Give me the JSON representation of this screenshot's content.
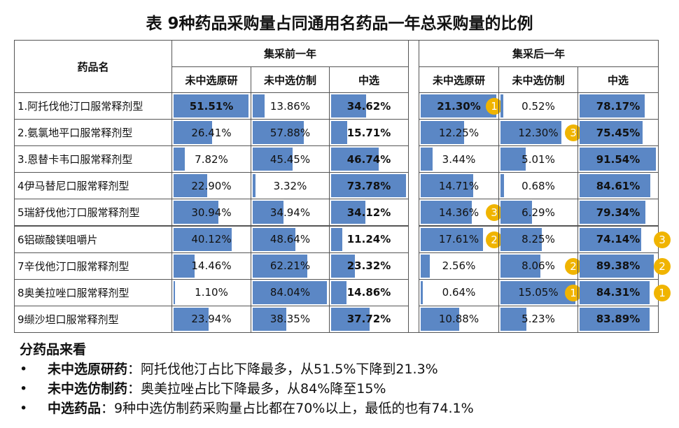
{
  "title": "表 9种药品采购量占同通用名药品一年总采购量的比例",
  "table": {
    "name_header": "药品名",
    "groups": [
      "集采前一年",
      "集采后一年"
    ],
    "subheaders": [
      "未中选原研",
      "未中选仿制",
      "中选",
      "未中选原研",
      "未中选仿制",
      "中选"
    ],
    "rows": [
      {
        "name": "1.阿托伐他汀口服常释剂型",
        "values": [
          51.51,
          13.86,
          34.62,
          21.3,
          0.52,
          78.17
        ],
        "value_labels": [
          "51.51%",
          "13.86%",
          "34.62%",
          "21.30%",
          "0.52%",
          "78.17%"
        ],
        "badges": [
          null,
          null,
          null,
          "1",
          null,
          null
        ]
      },
      {
        "name": "2.氨氯地平口服常释剂型",
        "values": [
          26.41,
          57.88,
          15.71,
          12.25,
          12.3,
          75.45
        ],
        "value_labels": [
          "26.41%",
          "57.88%",
          "15.71%",
          "12.25%",
          "12.30%",
          "75.45%"
        ],
        "badges": [
          null,
          null,
          null,
          null,
          "3",
          null
        ]
      },
      {
        "name": "3.恩替卡韦口服常释剂型",
        "values": [
          7.82,
          45.45,
          46.74,
          3.44,
          5.01,
          91.54
        ],
        "value_labels": [
          "7.82%",
          "45.45%",
          "46.74%",
          "3.44%",
          "5.01%",
          "91.54%"
        ],
        "badges": [
          null,
          null,
          null,
          null,
          null,
          null
        ]
      },
      {
        "name": "4伊马替尼口服常释剂型",
        "values": [
          22.9,
          3.32,
          73.78,
          14.71,
          0.68,
          84.61
        ],
        "value_labels": [
          "22.90%",
          "3.32%",
          "73.78%",
          "14.71%",
          "0.68%",
          "84.61%"
        ],
        "badges": [
          null,
          null,
          null,
          null,
          null,
          null
        ]
      },
      {
        "name": "5瑞舒伐他汀口服常释剂型",
        "values": [
          30.94,
          34.94,
          34.12,
          14.36,
          6.29,
          79.34
        ],
        "value_labels": [
          "30.94%",
          "34.94%",
          "34.12%",
          "14.36%",
          "6.29%",
          "79.34%"
        ],
        "badges": [
          null,
          null,
          null,
          "3",
          null,
          null
        ]
      },
      {
        "name": "6铝碳酸镁咀嚼片",
        "values": [
          40.12,
          48.64,
          11.24,
          17.61,
          8.25,
          74.14
        ],
        "value_labels": [
          "40.12%",
          "48.64%",
          "11.24%",
          "17.61%",
          "8.25%",
          "74.14%"
        ],
        "badges": [
          null,
          null,
          null,
          "2",
          null,
          "3"
        ]
      },
      {
        "name": "7辛伐他汀口服常释剂型",
        "values": [
          14.46,
          62.21,
          23.32,
          2.56,
          8.06,
          89.38
        ],
        "value_labels": [
          "14.46%",
          "62.21%",
          "23.32%",
          "2.56%",
          "8.06%",
          "89.38%"
        ],
        "badges": [
          null,
          null,
          null,
          null,
          "2",
          "2"
        ]
      },
      {
        "name": "8奥美拉唑口服常释剂型",
        "values": [
          1.1,
          84.04,
          14.86,
          0.64,
          15.05,
          84.31
        ],
        "value_labels": [
          "1.10%",
          "84.04%",
          "14.86%",
          "0.64%",
          "15.05%",
          "84.31%"
        ],
        "badges": [
          null,
          null,
          null,
          null,
          "1",
          "1"
        ]
      },
      {
        "name": "9缬沙坦口服常释剂型",
        "values": [
          23.94,
          38.35,
          37.72,
          10.88,
          5.23,
          83.89
        ],
        "value_labels": [
          "23.94%",
          "38.35%",
          "37.72%",
          "10.88%",
          "5.23%",
          "83.89%"
        ],
        "badges": [
          null,
          null,
          null,
          null,
          null,
          null
        ]
      }
    ]
  },
  "notes": {
    "heading": "分药品来看",
    "items": [
      {
        "lead": "未中选原研药",
        "text": "：阿托伐他汀占比下降最多，从51.5%下降到21.3%"
      },
      {
        "lead": "未中选仿制药",
        "text": "：奥美拉唑占比下降最多，从84%降至15%"
      },
      {
        "lead": "中选药品",
        "text": "：9种中选仿制药采购量占比都在70%以上，最低的也有74.1%"
      }
    ]
  }
}
